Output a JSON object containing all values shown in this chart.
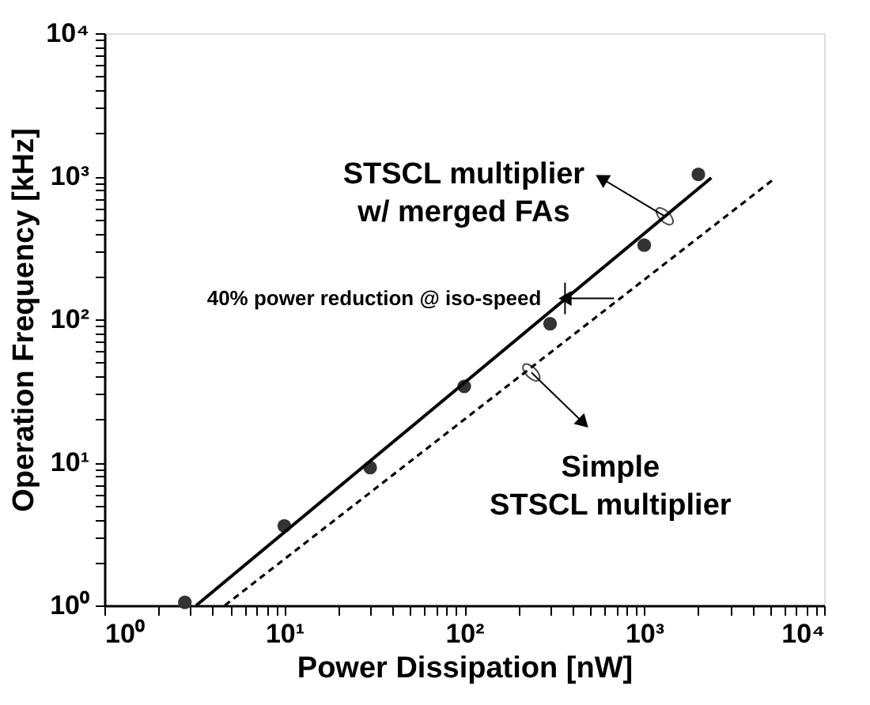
{
  "chart_data": {
    "type": "scatter",
    "xlabel": "Power Dissipation [nW]",
    "ylabel": "Operation Frequency [kHz]",
    "log": "xy",
    "grid": false,
    "xlim": [
      1,
      10000
    ],
    "ylim": [
      1,
      10000
    ],
    "xticks": [
      {
        "value": 1,
        "label": "10⁰"
      },
      {
        "value": 2,
        "label": null
      },
      {
        "value": 3,
        "label": null
      },
      {
        "value": 4,
        "label": null
      },
      {
        "value": 5,
        "label": null
      },
      {
        "value": 6,
        "label": null
      },
      {
        "value": 7,
        "label": null
      },
      {
        "value": 8,
        "label": null
      },
      {
        "value": 9,
        "label": null
      },
      {
        "value": 10,
        "label": "10¹"
      },
      {
        "value": 20,
        "label": null
      },
      {
        "value": 30,
        "label": null
      },
      {
        "value": 40,
        "label": null
      },
      {
        "value": 50,
        "label": null
      },
      {
        "value": 60,
        "label": null
      },
      {
        "value": 70,
        "label": null
      },
      {
        "value": 80,
        "label": null
      },
      {
        "value": 90,
        "label": null
      },
      {
        "value": 100,
        "label": "10²"
      },
      {
        "value": 200,
        "label": null
      },
      {
        "value": 300,
        "label": null
      },
      {
        "value": 400,
        "label": null
      },
      {
        "value": 500,
        "label": null
      },
      {
        "value": 600,
        "label": null
      },
      {
        "value": 700,
        "label": null
      },
      {
        "value": 800,
        "label": null
      },
      {
        "value": 900,
        "label": null
      },
      {
        "value": 1000,
        "label": "10³"
      },
      {
        "value": 2000,
        "label": null
      },
      {
        "value": 3000,
        "label": null
      },
      {
        "value": 4000,
        "label": null
      },
      {
        "value": 5000,
        "label": null
      },
      {
        "value": 6000,
        "label": null
      },
      {
        "value": 7000,
        "label": null
      },
      {
        "value": 8000,
        "label": null
      },
      {
        "value": 9000,
        "label": null
      },
      {
        "value": 10000,
        "label": "10⁴"
      }
    ],
    "yticks": [
      {
        "value": 1,
        "label": "10⁰"
      },
      {
        "value": 2,
        "label": null
      },
      {
        "value": 3,
        "label": null
      },
      {
        "value": 4,
        "label": null
      },
      {
        "value": 5,
        "label": null
      },
      {
        "value": 6,
        "label": null
      },
      {
        "value": 7,
        "label": null
      },
      {
        "value": 8,
        "label": null
      },
      {
        "value": 9,
        "label": null
      },
      {
        "value": 10,
        "label": "10¹"
      },
      {
        "value": 20,
        "label": null
      },
      {
        "value": 30,
        "label": null
      },
      {
        "value": 40,
        "label": null
      },
      {
        "value": 50,
        "label": null
      },
      {
        "value": 60,
        "label": null
      },
      {
        "value": 70,
        "label": null
      },
      {
        "value": 80,
        "label": null
      },
      {
        "value": 90,
        "label": null
      },
      {
        "value": 100,
        "label": "10²"
      },
      {
        "value": 200,
        "label": null
      },
      {
        "value": 300,
        "label": null
      },
      {
        "value": 400,
        "label": null
      },
      {
        "value": 500,
        "label": null
      },
      {
        "value": 600,
        "label": null
      },
      {
        "value": 700,
        "label": null
      },
      {
        "value": 800,
        "label": null
      },
      {
        "value": 900,
        "label": null
      },
      {
        "value": 1000,
        "label": "10³"
      },
      {
        "value": 2000,
        "label": null
      },
      {
        "value": 3000,
        "label": null
      },
      {
        "value": 4000,
        "label": null
      },
      {
        "value": 5000,
        "label": null
      },
      {
        "value": 6000,
        "label": null
      },
      {
        "value": 7000,
        "label": null
      },
      {
        "value": 8000,
        "label": null
      },
      {
        "value": 9000,
        "label": null
      },
      {
        "value": 10000,
        "label": "10⁴"
      }
    ],
    "series": [
      {
        "color": "#333333",
        "marker": "circle",
        "x": [
          2.8,
          10,
          30,
          100,
          300,
          1000,
          2000
        ],
        "values": [
          1.05,
          3.6,
          9.2,
          34,
          93,
          330,
          1030
        ]
      },
      {
        "type": "line",
        "color": "#000000",
        "line_style": "solid",
        "marker": "none",
        "x": [
          3.24,
          2360
        ],
        "values": [
          1,
          975
        ]
      },
      {
        "type": "line",
        "color": "#000000",
        "line_style": "dashed",
        "marker": "none",
        "x": [
          4.67,
          5250
        ],
        "values": [
          1,
          955
        ]
      }
    ],
    "annotations": [
      {
        "text": "STSCL multiplier\nw/ merged FAs",
        "x": 1300,
        "y": 525
      },
      {
        "text": "Simple\nSTSCL multiplier",
        "x": 236,
        "y": 42.5
      },
      {
        "text": "40% power reduction @ iso-speed",
        "x": 363,
        "y": 140
      }
    ]
  }
}
